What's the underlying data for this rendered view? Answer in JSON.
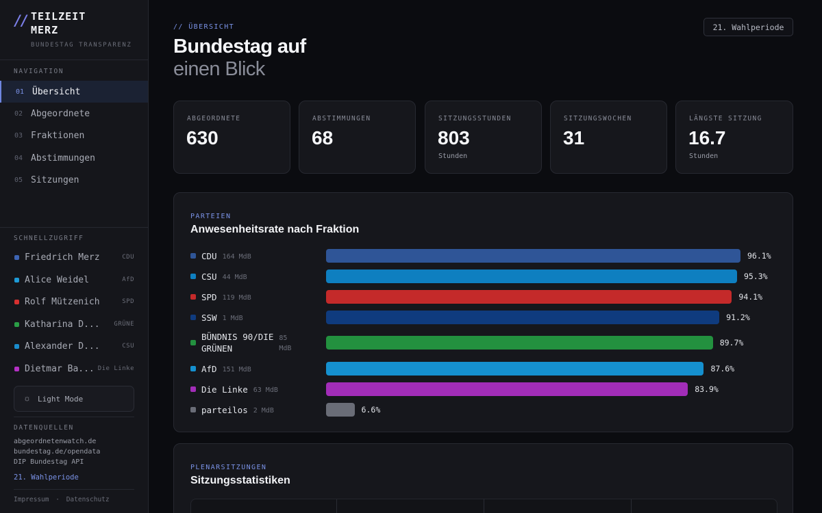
{
  "brand": {
    "mark": "//",
    "title": "TEILZEIT\nMERZ",
    "subtitle": "BUNDESTAG TRANSPARENZ"
  },
  "navigation": {
    "label": "NAVIGATION",
    "items": [
      {
        "num": "01",
        "label": "Übersicht",
        "active": true
      },
      {
        "num": "02",
        "label": "Abgeordnete",
        "active": false
      },
      {
        "num": "03",
        "label": "Fraktionen",
        "active": false
      },
      {
        "num": "04",
        "label": "Abstimmungen",
        "active": false
      },
      {
        "num": "05",
        "label": "Sitzungen",
        "active": false
      }
    ]
  },
  "quick_access": {
    "label": "SCHNELLZUGRIFF",
    "items": [
      {
        "name": "Friedrich Merz",
        "party": "CDU",
        "color": "#3d64b4"
      },
      {
        "name": "Alice Weidel",
        "party": "AfD",
        "color": "#1e9ad6"
      },
      {
        "name": "Rolf Mützenich",
        "party": "SPD",
        "color": "#d63030"
      },
      {
        "name": "Katharina D...",
        "party": "GRÜNE",
        "color": "#2a9e46"
      },
      {
        "name": "Alexander D...",
        "party": "CSU",
        "color": "#1a8ccc"
      },
      {
        "name": "Dietmar Ba...",
        "party": "Die Linke",
        "color": "#b431c4"
      }
    ]
  },
  "theme_toggle": {
    "icon": "sun-icon",
    "glyph": "☼",
    "label": "Light Mode"
  },
  "data_sources": {
    "label": "DATENQUELLEN",
    "items": [
      "abgeordnetenwatch.de",
      "bundestag.de/opendata",
      "DIP Bundestag API"
    ],
    "period_link": "21. Wahlperiode"
  },
  "footer": {
    "impressum": "Impressum",
    "separator": "·",
    "datenschutz": "Datenschutz"
  },
  "header": {
    "eyebrow": "// ÜBERSICHT",
    "title": "Bundestag auf",
    "title_sub": "einen Blick",
    "period_badge": "21. Wahlperiode"
  },
  "stats": [
    {
      "label": "ABGEORDNETE",
      "value": "630",
      "unit": ""
    },
    {
      "label": "ABSTIMMUNGEN",
      "value": "68",
      "unit": ""
    },
    {
      "label": "SITZUNGSSTUNDEN",
      "value": "803",
      "unit": "Stunden"
    },
    {
      "label": "SITZUNGSWOCHEN",
      "value": "31",
      "unit": ""
    },
    {
      "label": "LÄNGSTE SITZUNG",
      "value": "16.7",
      "unit": "Stunden"
    }
  ],
  "attendance": {
    "eyebrow": "PARTEIEN",
    "title": "Anwesenheitsrate nach Fraktion",
    "parties": [
      {
        "name": "CDU",
        "mdb": "164 MdB",
        "pct": "96.1%",
        "value": 96.1,
        "color": "#2f5597"
      },
      {
        "name": "CSU",
        "mdb": "44 MdB",
        "pct": "95.3%",
        "value": 95.3,
        "color": "#0e7fc0"
      },
      {
        "name": "SPD",
        "mdb": "119 MdB",
        "pct": "94.1%",
        "value": 94.1,
        "color": "#c42a2a"
      },
      {
        "name": "SSW",
        "mdb": "1 MdB",
        "pct": "91.2%",
        "value": 91.2,
        "color": "#0f3b7e"
      },
      {
        "name": "BÜNDNIS 90/DIE\nGRÜNEN",
        "mdb": "85\nMdB",
        "pct": "89.7%",
        "value": 89.7,
        "color": "#23913f"
      },
      {
        "name": "AfD",
        "mdb": "151 MdB",
        "pct": "87.6%",
        "value": 87.6,
        "color": "#1590cf"
      },
      {
        "name": "Die Linke",
        "mdb": "63 MdB",
        "pct": "83.9%",
        "value": 83.9,
        "color": "#a22db8"
      },
      {
        "name": "parteilos",
        "mdb": "2 MdB",
        "pct": "6.6%",
        "value": 6.6,
        "color": "#6a6d77"
      }
    ]
  },
  "sessions": {
    "eyebrow": "PLENARSITZUNGEN",
    "title": "Sitzungsstatistiken"
  }
}
